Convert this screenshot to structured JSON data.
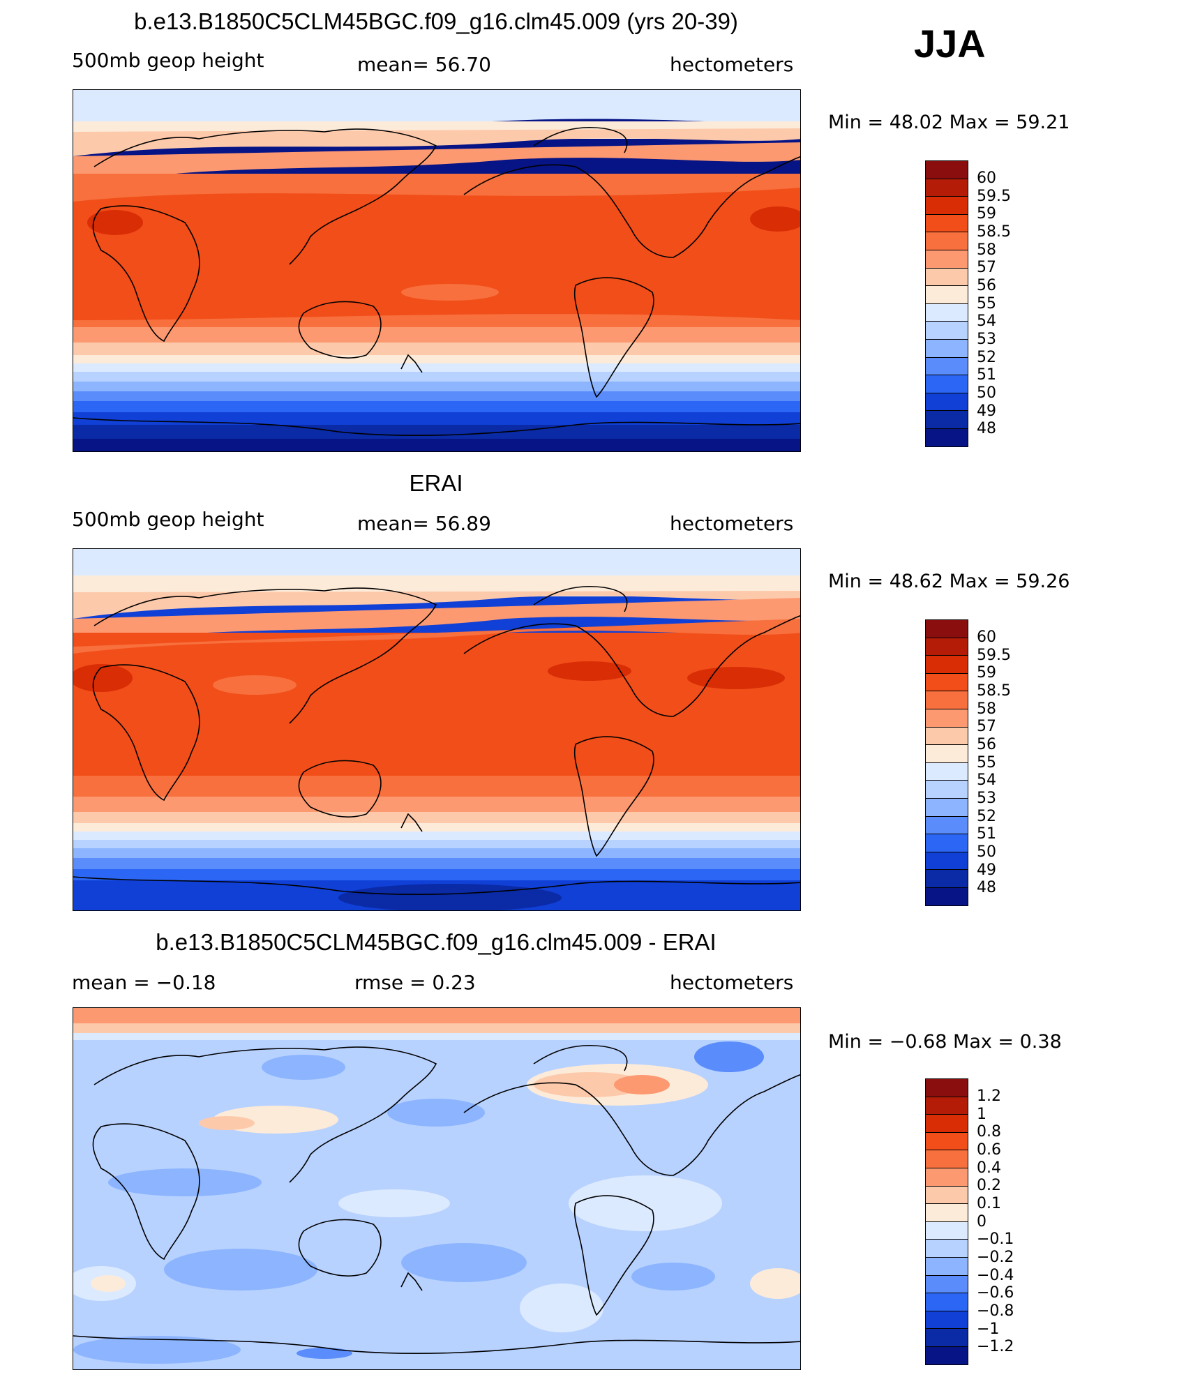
{
  "season": "JJA",
  "panels": [
    {
      "title": "b.e13.B1850C5CLM45BGC.f09_g16.clm45.009 (yrs 20-39)",
      "left_label": "500mb  geop  height",
      "center_label": "mean=   56.70",
      "right_label": "hectometers",
      "minmax": "Min  =    48.02  Max  =    59.21",
      "levels": [
        "60",
        "59.5",
        "59",
        "58.5",
        "58",
        "57",
        "56",
        "55",
        "54",
        "53",
        "52",
        "51",
        "50",
        "49",
        "48"
      ],
      "colors": [
        "#8b0e0e",
        "#b51c07",
        "#d92d06",
        "#f24e19",
        "#f7703d",
        "#fc9970",
        "#fdc9ab",
        "#fdebd9",
        "#dceaff",
        "#b8d2ff",
        "#8cb4ff",
        "#5a8dfb",
        "#2b66f5",
        "#1040d6",
        "#0a2aa6",
        "#061485"
      ]
    },
    {
      "title": "ERAI",
      "left_label": "500mb  geop  height",
      "center_label": "mean=   56.89",
      "right_label": "hectometers",
      "minmax": "Min  =    48.62  Max  =    59.26",
      "levels": [
        "60",
        "59.5",
        "59",
        "58.5",
        "58",
        "57",
        "56",
        "55",
        "54",
        "53",
        "52",
        "51",
        "50",
        "49",
        "48"
      ],
      "colors": [
        "#8b0e0e",
        "#b51c07",
        "#d92d06",
        "#f24e19",
        "#f7703d",
        "#fc9970",
        "#fdc9ab",
        "#fdebd9",
        "#dceaff",
        "#b8d2ff",
        "#8cb4ff",
        "#5a8dfb",
        "#2b66f5",
        "#1040d6",
        "#0a2aa6",
        "#061485"
      ]
    },
    {
      "title": "b.e13.B1850C5CLM45BGC.f09_g16.clm45.009 - ERAI",
      "left_label": "mean  =    −0.18",
      "center_label": "rmse  =     0.23",
      "right_label": "hectometers",
      "minmax": "Min  =    −0.68  Max  =      0.38",
      "levels": [
        "1.2",
        "1",
        "0.8",
        "0.6",
        "0.4",
        "0.2",
        "0.1",
        "0",
        "−0.1",
        "−0.2",
        "−0.4",
        "−0.6",
        "−0.8",
        "−1",
        "−1.2"
      ],
      "colors": [
        "#8b0e0e",
        "#b51c07",
        "#d92d06",
        "#f24e19",
        "#f7703d",
        "#fc9970",
        "#fdc9ab",
        "#fdebd9",
        "#dceaff",
        "#b8d2ff",
        "#8cb4ff",
        "#5a8dfb",
        "#2b66f5",
        "#1040d6",
        "#0a2aa6",
        "#061485"
      ]
    }
  ]
}
